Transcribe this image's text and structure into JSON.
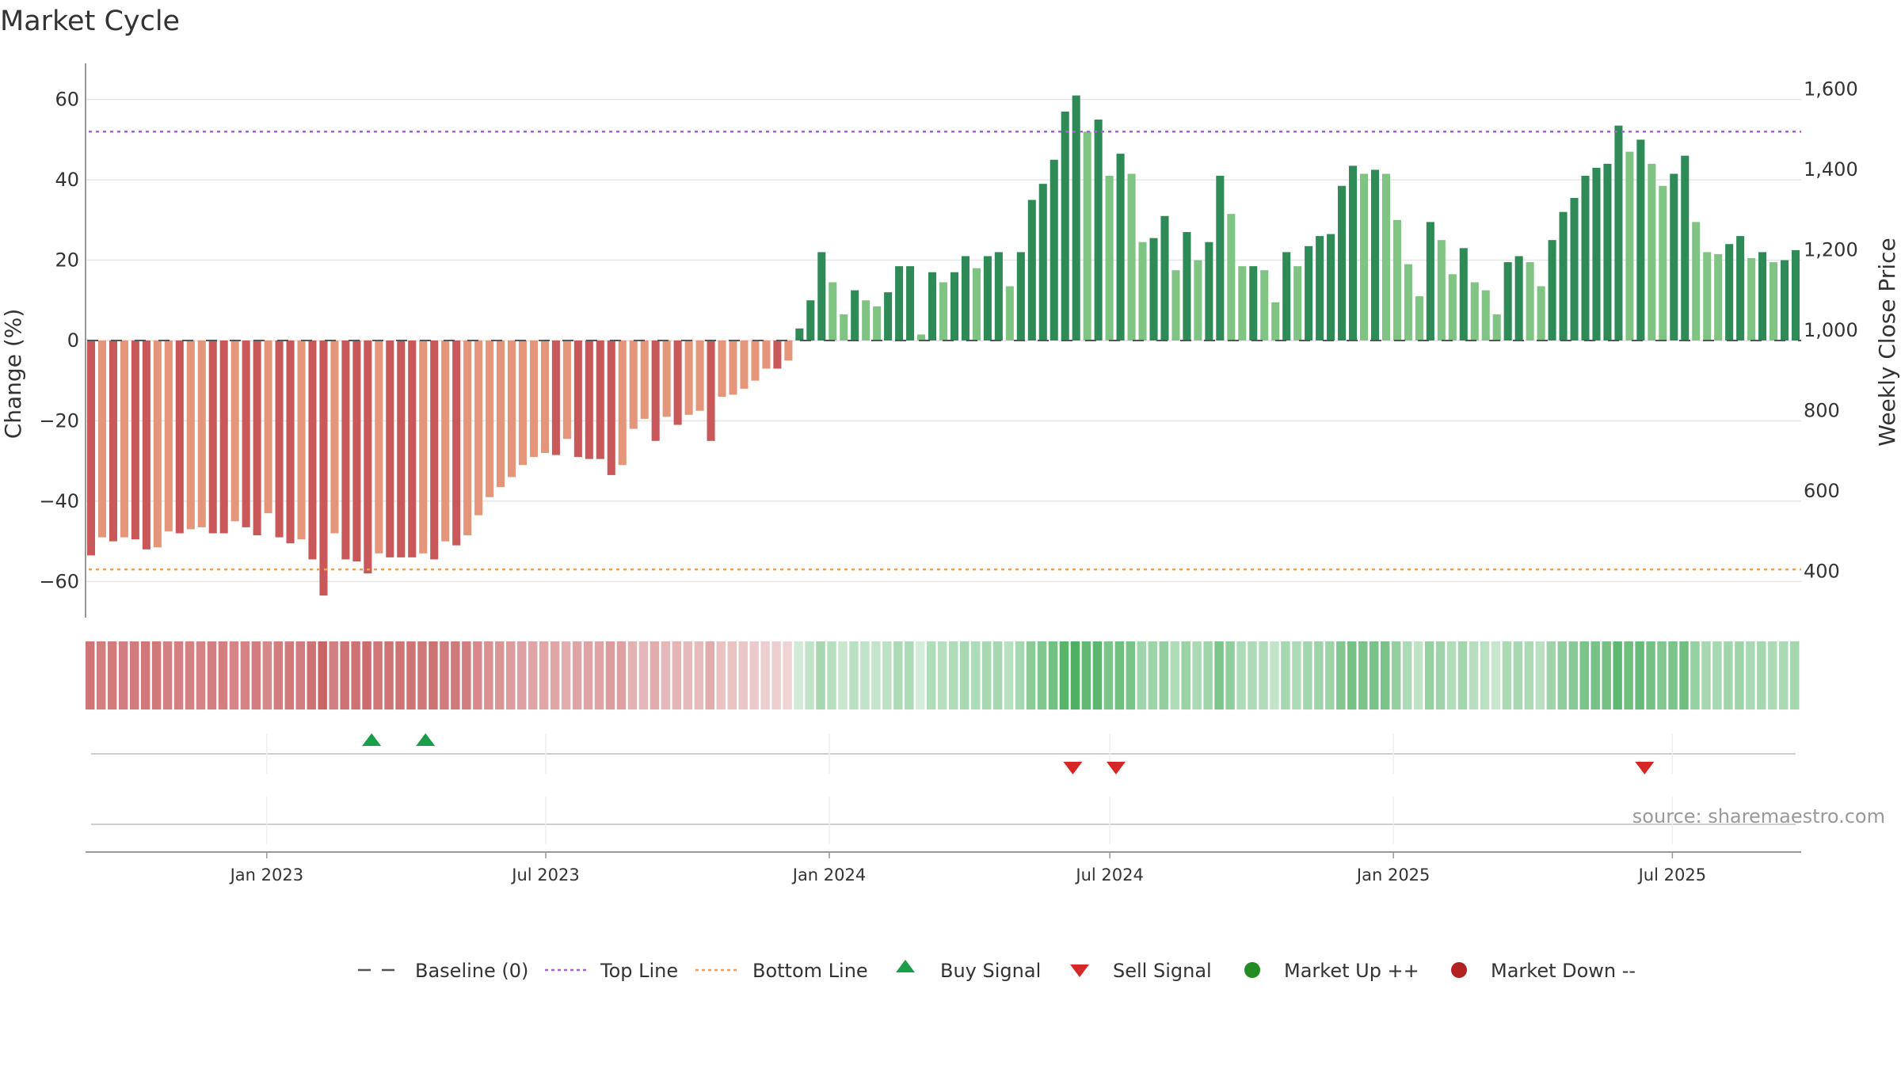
{
  "chart_data": {
    "type": "bar",
    "title": "Market Cycle",
    "ylabel_left": "Change (%)",
    "ylabel_right": "Weekly Close Price",
    "ylim_left": [
      -69,
      69
    ],
    "yticks_left": [
      60,
      40,
      20,
      0,
      -20,
      -40,
      -60
    ],
    "ytick_labels_left": [
      "60",
      "40",
      "20",
      "0",
      "−20",
      "−40",
      "−60"
    ],
    "ytick_labels_right": [
      "1,600",
      "1,400",
      "1,200",
      "1,000",
      "800",
      "600",
      "400"
    ],
    "top_line": 52,
    "bottom_line": -57,
    "x_start": "2022-09-09",
    "x_end": "2025-09-19",
    "xticks": [
      "2023-01-01",
      "2023-07-01",
      "2024-01-01",
      "2024-07-01",
      "2025-01-01",
      "2025-07-01"
    ],
    "xtick_labels": [
      "Jan 2023",
      "Jul 2023",
      "Jan 2024",
      "Jul 2024",
      "Jan 2025",
      "Jul 2025"
    ],
    "change_values": [
      -53.5,
      -49,
      -50,
      -49,
      -49.5,
      -52,
      -51.5,
      -47.5,
      -48,
      -47,
      -46.5,
      -48,
      -48,
      -45,
      -46.5,
      -48.5,
      -43,
      -49,
      -50.5,
      -49.5,
      -54.5,
      -63.5,
      -48,
      -54.5,
      -55,
      -58,
      -53,
      -54,
      -54,
      -54,
      -53,
      -54.5,
      -50,
      -51,
      -48.5,
      -43.5,
      -39,
      -36.5,
      -34,
      -31,
      -29,
      -28,
      -28.5,
      -24.5,
      -29,
      -29.5,
      -29.5,
      -33.5,
      -31,
      -22,
      -19.5,
      -25,
      -19,
      -21,
      -18.5,
      -17.5,
      -25,
      -14,
      -13.5,
      -12,
      -10,
      -7,
      -7,
      -5,
      3,
      10,
      22,
      14.5,
      6.5,
      12.5,
      10,
      8.5,
      12,
      18.5,
      18.5,
      1.5,
      17,
      14.5,
      17,
      21,
      18,
      21,
      22,
      13.5,
      22,
      35,
      39,
      45,
      57,
      61,
      52,
      55,
      41,
      46.5,
      41.5,
      24.5,
      25.5,
      31,
      17.5,
      27,
      20,
      24.5,
      41,
      31.5,
      18.5,
      18.5,
      17.5,
      9.5,
      22,
      18.5,
      23.5,
      26,
      26.5,
      38.5,
      43.5,
      41.5,
      42.5,
      41.5,
      30,
      19,
      11,
      29.5,
      25,
      16.5,
      23,
      14.5,
      12.5,
      6.5,
      19.5,
      21,
      19.5,
      13.5,
      25,
      32,
      35.5,
      41,
      43,
      44,
      53.5,
      47,
      50,
      44,
      38.5,
      41.5,
      46,
      29.5,
      22,
      21.5,
      24,
      26,
      20.5,
      22,
      19.5,
      20,
      22.5
    ],
    "signals": [
      {
        "type": "buy",
        "date": "2023-03-10"
      },
      {
        "type": "buy",
        "date": "2023-04-14"
      },
      {
        "type": "sell",
        "date": "2024-06-07"
      },
      {
        "type": "sell",
        "date": "2024-07-05"
      },
      {
        "type": "sell",
        "date": "2025-06-13"
      }
    ],
    "legend": [
      {
        "key": "baseline",
        "label": "Baseline (0)"
      },
      {
        "key": "topline",
        "label": "Top Line"
      },
      {
        "key": "bottomline",
        "label": "Bottom Line"
      },
      {
        "key": "buy",
        "label": "Buy Signal"
      },
      {
        "key": "sell",
        "label": "Sell Signal"
      },
      {
        "key": "up",
        "label": "Market Up ++"
      },
      {
        "key": "down",
        "label": "Market Down --"
      }
    ],
    "source": "source: sharemaestro.com",
    "colors": {
      "red_dark": "#c8585a",
      "red_light": "#e5957a",
      "green_dark": "#2e8b57",
      "green_light": "#80c483",
      "top_line": "#b05cd6",
      "bottom_line": "#f0a050",
      "baseline": "#555555",
      "buy": "#1a9e4a",
      "sell": "#d62728",
      "up_dot": "#228b22",
      "down_dot": "#b22222",
      "heat_red": "#c96466",
      "heat_green": "#4caf60"
    }
  }
}
